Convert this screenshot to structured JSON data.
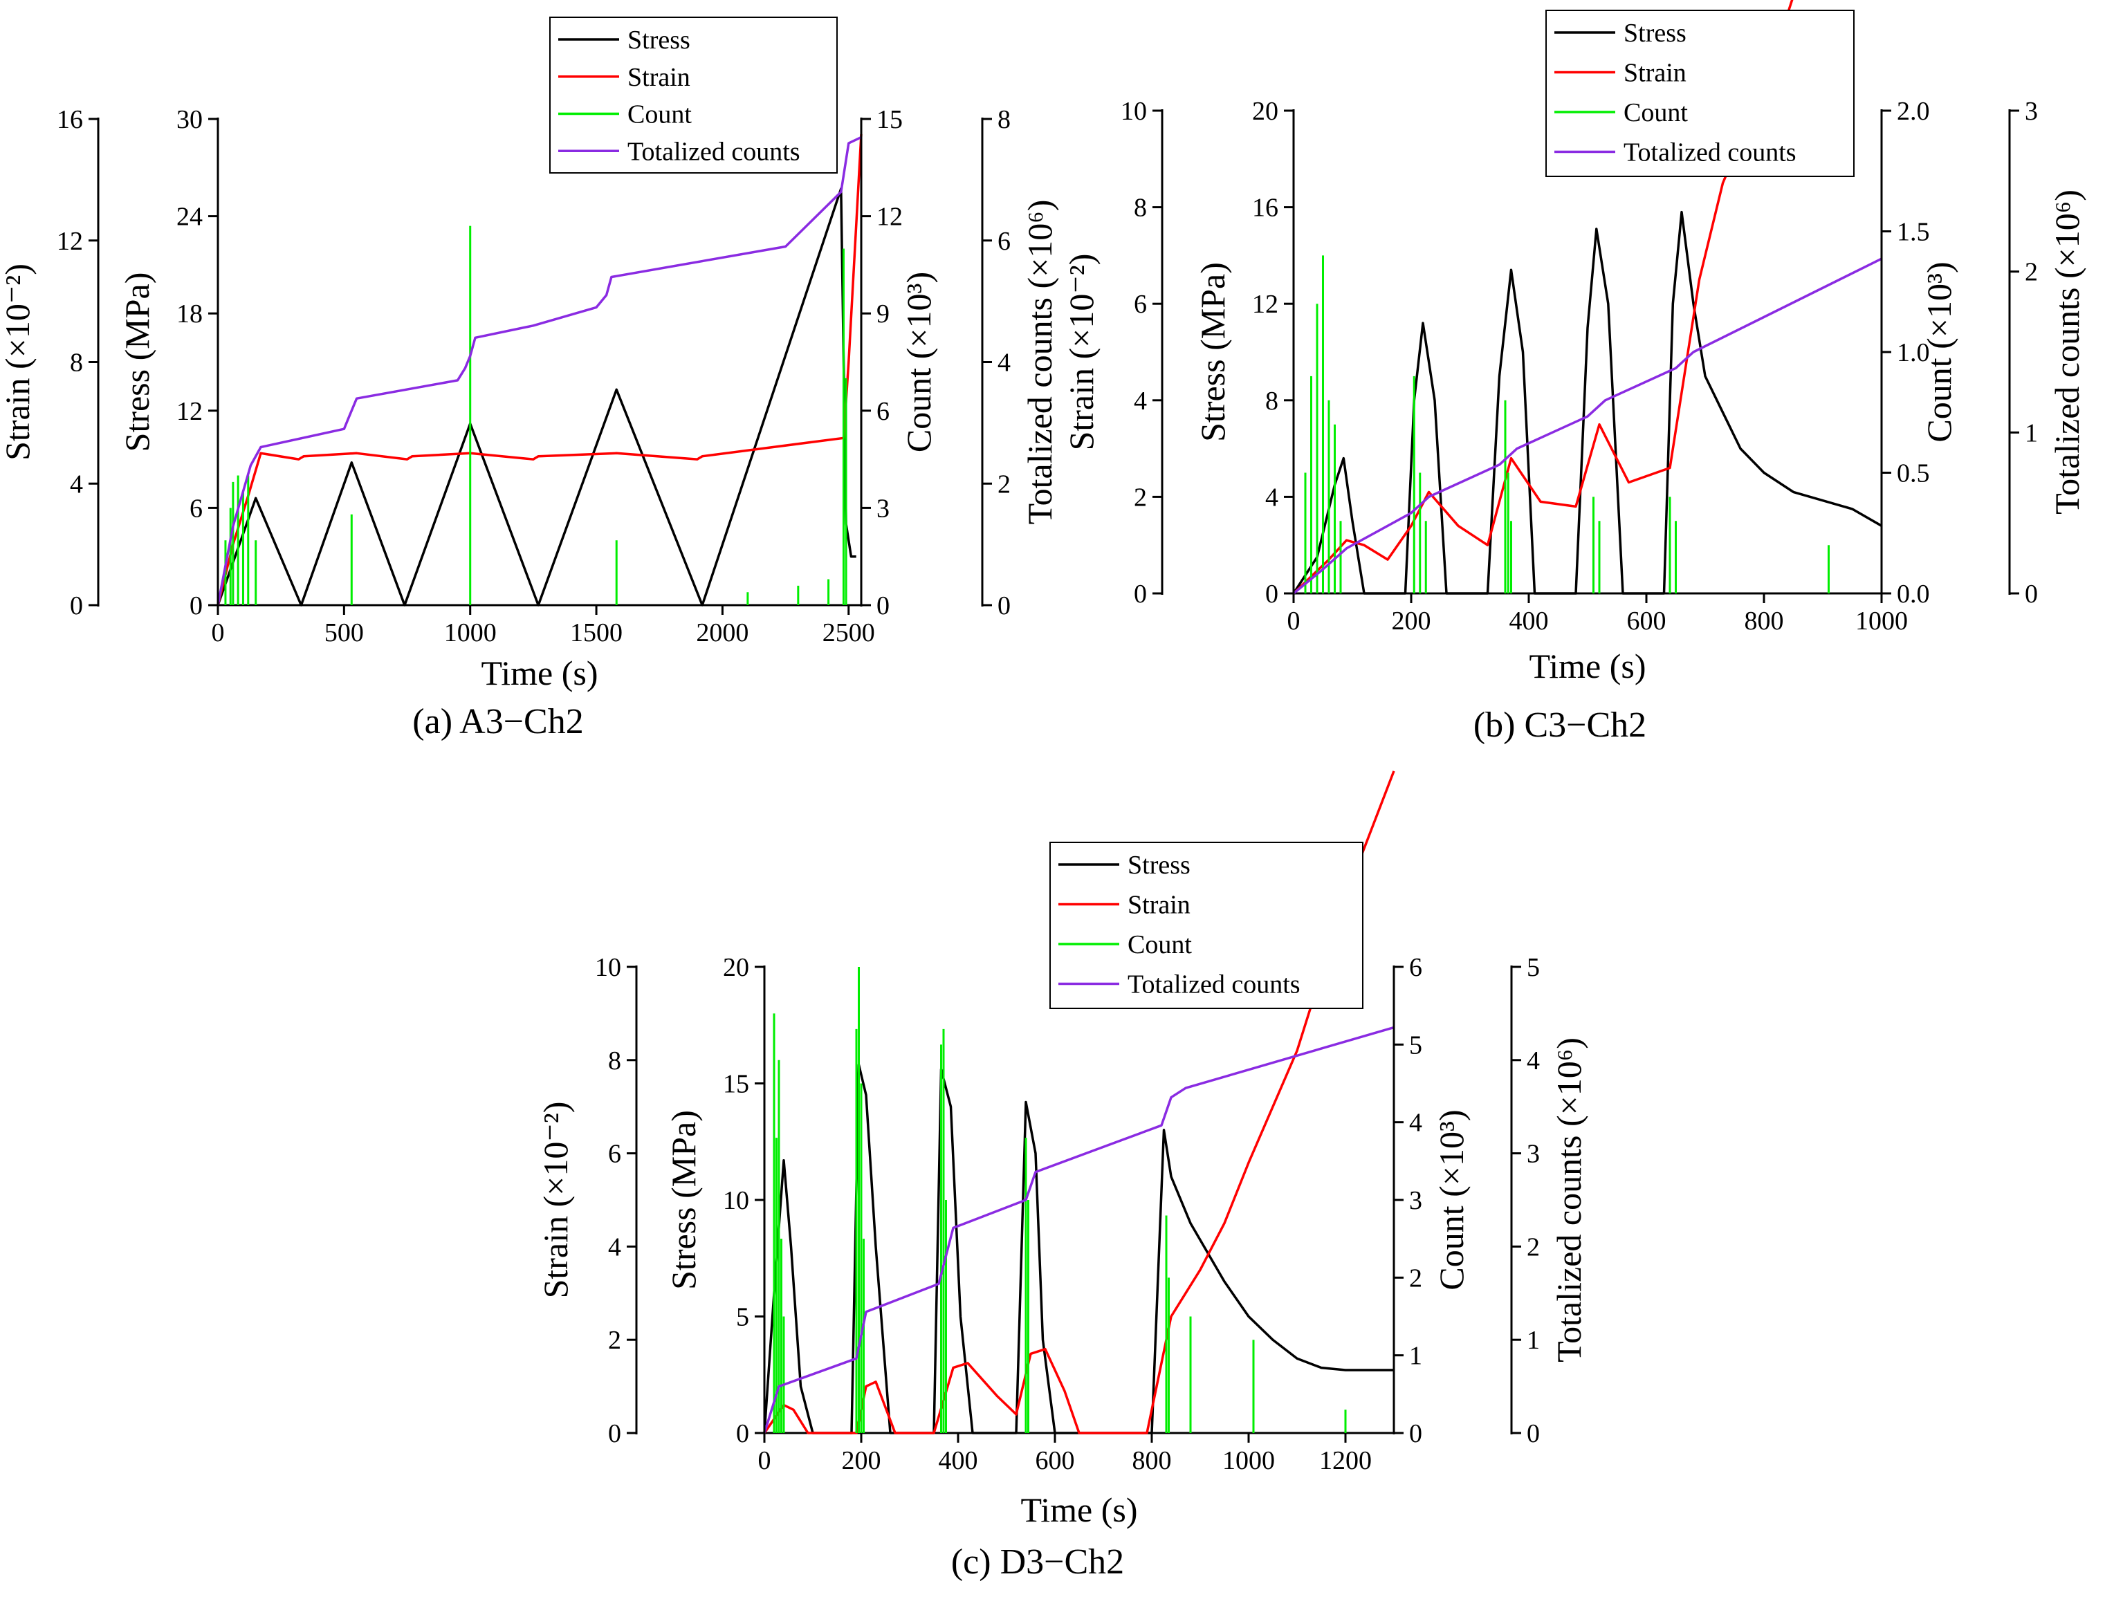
{
  "chart_data": [
    {
      "type": "line",
      "caption": "(a) A3−Ch2",
      "xlabel": "Time (s)",
      "xlim": [
        0,
        2550
      ],
      "xticks": [
        0,
        500,
        1000,
        1500,
        2000,
        2500
      ],
      "legend": [
        "Stress",
        "Strain",
        "Count",
        "Totalized counts"
      ],
      "legend_position": "top-center",
      "axes": {
        "strain": {
          "label": "Strain (×10⁻²)",
          "lim": [
            0,
            16
          ],
          "ticks": [
            0,
            4,
            8,
            12,
            16
          ]
        },
        "stress": {
          "label": "Stress (MPa)",
          "lim": [
            0,
            30
          ],
          "ticks": [
            0,
            6,
            12,
            18,
            24,
            30
          ]
        },
        "count": {
          "label": "Count (×10³)",
          "lim": [
            0,
            15
          ],
          "ticks": [
            0,
            3,
            6,
            9,
            12,
            15
          ]
        },
        "total": {
          "label": "Totalized counts (×10⁶)",
          "lim": [
            0,
            8
          ],
          "ticks": [
            0,
            2,
            4,
            6,
            8
          ]
        }
      },
      "series": [
        {
          "name": "Stress",
          "axis": "stress",
          "color": "#000000",
          "x": [
            0,
            150,
            330,
            530,
            740,
            1000,
            1270,
            1580,
            1920,
            2470,
            2490,
            2510,
            2530
          ],
          "y": [
            0,
            6.6,
            0,
            8.8,
            0,
            11.2,
            0,
            13.3,
            0,
            25.7,
            5,
            3,
            3
          ]
        },
        {
          "name": "Strain",
          "axis": "strain",
          "color": "#ff0000",
          "x": [
            0,
            60,
            120,
            170,
            320,
            340,
            550,
            750,
            770,
            1000,
            1250,
            1270,
            1580,
            1900,
            1920,
            2200,
            2480,
            2500,
            2550
          ],
          "y": [
            0,
            2,
            3.6,
            5,
            4.8,
            4.9,
            5,
            4.8,
            4.9,
            5,
            4.8,
            4.9,
            5,
            4.8,
            4.9,
            5.2,
            5.5,
            8,
            15.5
          ]
        },
        {
          "name": "Count",
          "axis": "count",
          "color": "#00ee00",
          "type": "bar",
          "x": [
            30,
            50,
            60,
            80,
            100,
            120,
            150,
            530,
            1000,
            1580,
            2100,
            2300,
            2420,
            2480,
            2490
          ],
          "y": [
            2,
            3,
            3.8,
            4,
            3.5,
            4,
            2,
            2.8,
            11.7,
            2,
            0.4,
            0.6,
            0.8,
            11,
            7
          ]
        },
        {
          "name": "Totalized counts",
          "axis": "total",
          "color": "#8a2be2",
          "x": [
            0,
            60,
            130,
            170,
            500,
            520,
            550,
            950,
            980,
            1000,
            1020,
            1250,
            1500,
            1540,
            1560,
            2250,
            2470,
            2500,
            2550
          ],
          "y": [
            0,
            1.3,
            2.3,
            2.6,
            2.9,
            3.1,
            3.4,
            3.7,
            3.9,
            4.1,
            4.4,
            4.6,
            4.9,
            5.1,
            5.4,
            5.9,
            6.8,
            7.6,
            7.7
          ]
        }
      ]
    },
    {
      "type": "line",
      "caption": "(b) C3−Ch2",
      "xlabel": "Time (s)",
      "xlim": [
        0,
        1000
      ],
      "xticks": [
        0,
        200,
        400,
        600,
        800,
        1000
      ],
      "legend": [
        "Stress",
        "Strain",
        "Count",
        "Totalized counts"
      ],
      "legend_position": "top-right",
      "axes": {
        "strain": {
          "label": "Strain (×10⁻²)",
          "lim": [
            0,
            10
          ],
          "ticks": [
            0,
            2,
            4,
            6,
            8,
            10
          ]
        },
        "stress": {
          "label": "Stress (MPa)",
          "lim": [
            0,
            20
          ],
          "ticks": [
            0,
            4,
            8,
            12,
            16,
            20
          ]
        },
        "count": {
          "label": "Count (×10³)",
          "lim": [
            0,
            2.0
          ],
          "ticks": [
            "0.0",
            "0.5",
            "1.0",
            "1.5",
            "2.0"
          ]
        },
        "total": {
          "label": "Totalized counts (×10⁶)",
          "lim": [
            0,
            3
          ],
          "ticks": [
            0,
            1,
            2,
            3
          ]
        }
      },
      "series": [
        {
          "name": "Stress",
          "axis": "stress",
          "color": "#000000",
          "x": [
            0,
            40,
            70,
            85,
            100,
            120,
            190,
            205,
            220,
            240,
            260,
            330,
            350,
            370,
            390,
            410,
            480,
            500,
            515,
            535,
            560,
            630,
            645,
            660,
            680,
            700,
            730,
            760,
            800,
            850,
            950,
            1000
          ],
          "y": [
            0,
            1.5,
            4.5,
            5.6,
            3,
            0,
            0,
            8,
            11.2,
            8,
            0,
            0,
            9,
            13.4,
            10,
            0,
            0,
            11,
            15.1,
            12,
            0,
            0,
            12,
            15.8,
            12,
            9,
            7.5,
            6,
            5,
            4.2,
            3.5,
            2.8
          ]
        },
        {
          "name": "Strain",
          "axis": "strain",
          "color": "#ff0000",
          "x": [
            0,
            60,
            90,
            120,
            160,
            200,
            230,
            280,
            330,
            370,
            420,
            480,
            520,
            570,
            640,
            690,
            730,
            800,
            880,
            950,
            1000
          ],
          "y": [
            0,
            0.7,
            1.1,
            1,
            0.7,
            1.4,
            2.1,
            1.4,
            1,
            2.8,
            1.9,
            1.8,
            3.5,
            2.3,
            2.6,
            6.5,
            8.5,
            10.5,
            13.5,
            16.5,
            17.5
          ]
        },
        {
          "name": "Count",
          "axis": "count",
          "color": "#00ee00",
          "type": "bar",
          "x": [
            20,
            30,
            40,
            50,
            60,
            70,
            80,
            205,
            215,
            225,
            360,
            365,
            370,
            510,
            520,
            640,
            650,
            910
          ],
          "y": [
            0.5,
            0.9,
            1.2,
            1.4,
            0.8,
            0.7,
            0.3,
            0.9,
            0.5,
            0.3,
            0.8,
            0.5,
            0.3,
            0.4,
            0.3,
            0.4,
            0.3,
            0.2
          ]
        },
        {
          "name": "Totalized counts",
          "axis": "total",
          "color": "#8a2be2",
          "x": [
            0,
            50,
            90,
            200,
            230,
            350,
            380,
            500,
            530,
            650,
            680,
            1000
          ],
          "y": [
            0,
            0.15,
            0.28,
            0.5,
            0.6,
            0.8,
            0.9,
            1.1,
            1.2,
            1.4,
            1.5,
            2.08
          ]
        }
      ]
    },
    {
      "type": "line",
      "caption": "(c) D3−Ch2",
      "xlabel": "Time (s)",
      "xlim": [
        0,
        1300
      ],
      "xticks": [
        0,
        200,
        400,
        600,
        800,
        1000,
        1200
      ],
      "legend": [
        "Stress",
        "Strain",
        "Count",
        "Totalized counts"
      ],
      "legend_position": "top-right",
      "axes": {
        "strain": {
          "label": "Strain (×10⁻²)",
          "lim": [
            0,
            10
          ],
          "ticks": [
            0,
            2,
            4,
            6,
            8,
            10
          ]
        },
        "stress": {
          "label": "Stress (MPa)",
          "lim": [
            0,
            20
          ],
          "ticks": [
            0,
            5,
            10,
            15,
            20
          ]
        },
        "count": {
          "label": "Count (×10³)",
          "lim": [
            0,
            6
          ],
          "ticks": [
            0,
            1,
            2,
            3,
            4,
            5,
            6
          ]
        },
        "total": {
          "label": "Totalized counts (×10⁶)",
          "lim": [
            0,
            5
          ],
          "ticks": [
            0,
            1,
            2,
            3,
            4,
            5
          ]
        }
      },
      "series": [
        {
          "name": "Stress",
          "axis": "stress",
          "color": "#000000",
          "x": [
            0,
            20,
            40,
            55,
            75,
            100,
            180,
            195,
            210,
            230,
            260,
            350,
            365,
            385,
            405,
            430,
            520,
            540,
            560,
            575,
            600,
            800,
            825,
            840,
            880,
            950,
            1000,
            1050,
            1100,
            1150,
            1200,
            1300
          ],
          "y": [
            0,
            6,
            11.7,
            8,
            2,
            0,
            0,
            15.8,
            14.5,
            8,
            0,
            0,
            15.6,
            14,
            5,
            0,
            0,
            14.2,
            12,
            4,
            0,
            0,
            13,
            11,
            9,
            6.5,
            5,
            4,
            3.2,
            2.8,
            2.7,
            2.7
          ]
        },
        {
          "name": "Strain",
          "axis": "strain",
          "color": "#ff0000",
          "x": [
            0,
            20,
            40,
            60,
            90,
            190,
            210,
            230,
            270,
            350,
            390,
            420,
            480,
            520,
            550,
            580,
            620,
            650,
            790,
            810,
            840,
            900,
            950,
            1000,
            1100,
            1200,
            1300
          ],
          "y": [
            0,
            0.3,
            0.6,
            0.5,
            0,
            0,
            1,
            1.1,
            0,
            0,
            1.4,
            1.5,
            0.8,
            0.4,
            1.7,
            1.8,
            0.9,
            0,
            0,
            1,
            2.5,
            3.5,
            4.5,
            5.8,
            8.2,
            11.5,
            14.2
          ]
        },
        {
          "name": "Count",
          "axis": "count",
          "color": "#00ee00",
          "type": "bar",
          "x": [
            20,
            25,
            30,
            35,
            40,
            190,
            195,
            200,
            205,
            365,
            370,
            375,
            540,
            545,
            830,
            835,
            880,
            1010,
            1200
          ],
          "y": [
            5.4,
            3.8,
            4.8,
            2.5,
            1.5,
            5.2,
            6,
            4.5,
            2.5,
            5,
            5.2,
            3,
            3.8,
            3,
            2.8,
            2,
            1.5,
            1.2,
            0.3
          ]
        },
        {
          "name": "Totalized counts",
          "axis": "total",
          "color": "#8a2be2",
          "x": [
            0,
            30,
            190,
            210,
            360,
            390,
            540,
            560,
            820,
            840,
            870,
            1300
          ],
          "y": [
            0,
            0.5,
            0.8,
            1.3,
            1.6,
            2.2,
            2.5,
            2.8,
            3.3,
            3.6,
            3.7,
            4.35
          ]
        }
      ]
    }
  ]
}
